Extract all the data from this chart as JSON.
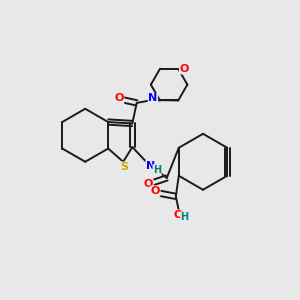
{
  "background_color": "#e8e8e8",
  "bond_color": "#1a1a1a",
  "atom_colors": {
    "O": "#ff0000",
    "N": "#0000ff",
    "S": "#ccaa00",
    "H": "#008080",
    "C": "#1a1a1a"
  },
  "figsize": [
    3.0,
    3.0
  ],
  "dpi": 100,
  "lw": 1.4,
  "fontsize": 7.5
}
